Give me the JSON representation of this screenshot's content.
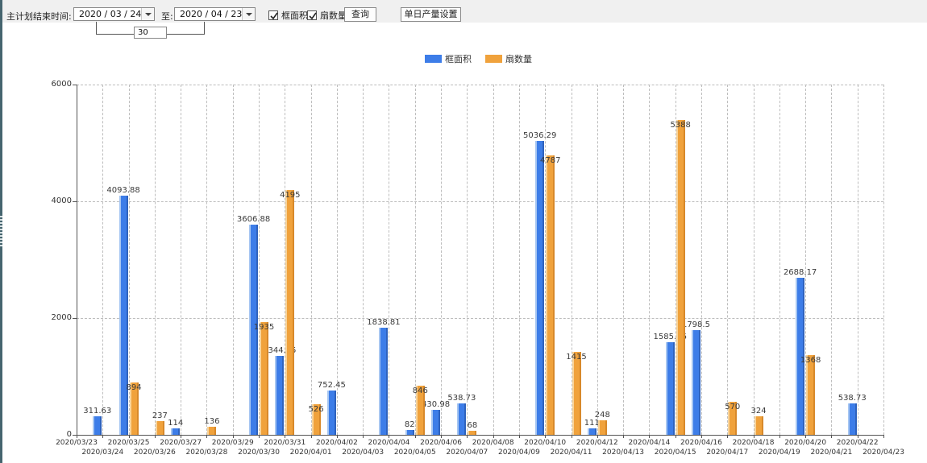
{
  "toolbar": {
    "label_end_time": "主计划结束时间:",
    "date_from": "2020 / 03 / 24",
    "label_to": "至:",
    "date_to": "2020 / 04 / 23",
    "days_between": "30",
    "checkbox_frame_area": "框面积",
    "checkbox_frame_area_checked": true,
    "checkbox_sash_count": "扇数量",
    "checkbox_sash_count_checked": true,
    "query_button": "查询",
    "daily_output_button": "单日产量设置"
  },
  "legend": [
    {
      "label": "框面积",
      "color": "#3d7de8"
    },
    {
      "label": "扇数量",
      "color": "#f0a23c"
    }
  ],
  "chart_data": {
    "type": "bar",
    "title": "",
    "xlabel": "",
    "ylabel": "",
    "ylim": [
      0,
      6000
    ],
    "yticks": [
      0,
      2000,
      4000,
      6000
    ],
    "grid": true,
    "legend_position": "top-center",
    "value_labels": true,
    "categories": [
      "2020/03/23",
      "2020/03/24",
      "2020/03/25",
      "2020/03/26",
      "2020/03/27",
      "2020/03/28",
      "2020/03/29",
      "2020/03/30",
      "2020/03/31",
      "2020/04/01",
      "2020/04/02",
      "2020/04/03",
      "2020/04/04",
      "2020/04/05",
      "2020/04/06",
      "2020/04/07",
      "2020/04/08",
      "2020/04/09",
      "2020/04/10",
      "2020/04/11",
      "2020/04/12",
      "2020/04/13",
      "2020/04/14",
      "2020/04/15",
      "2020/04/16",
      "2020/04/17",
      "2020/04/18",
      "2020/04/19",
      "2020/04/20",
      "2020/04/21",
      "2020/04/22",
      "2020/04/23"
    ],
    "series": [
      {
        "name": "框面积",
        "id": "frame-area",
        "color": "#3d7de8",
        "values": [
          null,
          311.63,
          4093.88,
          null,
          114,
          null,
          null,
          3606.88,
          1344.95,
          null,
          752.45,
          null,
          1838.81,
          82,
          430.98,
          538.73,
          null,
          null,
          5036.29,
          null,
          111,
          null,
          null,
          1585.96,
          1798.5,
          null,
          null,
          null,
          2688.17,
          null,
          538.73,
          null
        ]
      },
      {
        "name": "扇数量",
        "id": "sash-count",
        "color": "#f0a23c",
        "values": [
          null,
          null,
          894,
          237,
          null,
          136,
          null,
          1935,
          4195,
          526,
          null,
          null,
          null,
          846,
          null,
          68,
          null,
          null,
          4787,
          1415,
          248,
          null,
          null,
          5388,
          null,
          570,
          324,
          null,
          1368,
          null,
          null,
          null
        ]
      }
    ]
  }
}
